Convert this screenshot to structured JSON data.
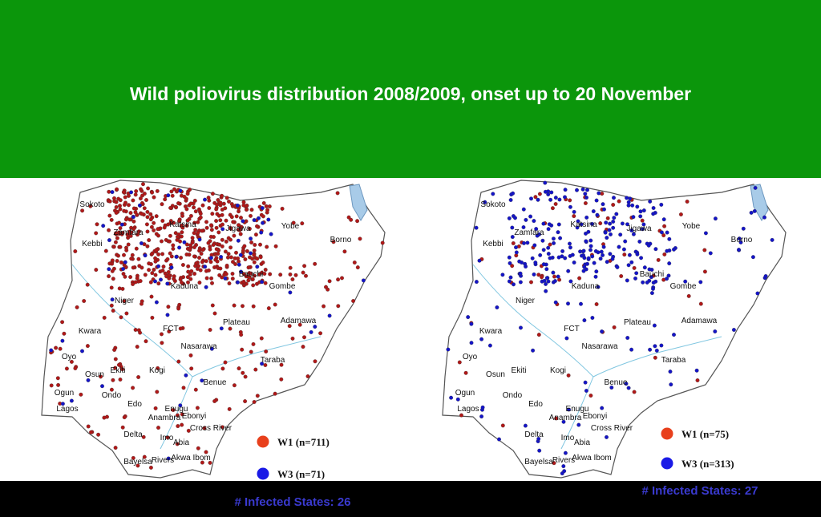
{
  "header": {
    "title": "Wild poliovirus distribution 2008/2009, onset up to 20 November"
  },
  "maps": [
    {
      "states": [
        "Sokoto",
        "Katsina",
        "Zamfara",
        "Jigawa",
        "Yobe",
        "Kebbi",
        "Borno",
        "Kaduna",
        "Bauchi",
        "Gombe",
        "Niger",
        "Plateau",
        "Adamawa",
        "Kwara",
        "FCT",
        "Nasarawa",
        "Oyo",
        "Osun",
        "Ekiti",
        "Kogi",
        "Taraba",
        "Ogun",
        "Benue",
        "Ondo",
        "Edo",
        "Lagos",
        "Enugu",
        "Anambra",
        "Ebonyi",
        "Cross River",
        "Delta",
        "Imo",
        "Abia",
        "Bayelsa",
        "Rivers",
        "Akwa Ibom"
      ],
      "legend": [
        "W1 (n=711)",
        "W3 (n=71)"
      ],
      "infected": "# Infected States: 26"
    },
    {
      "states": [
        "Sokoto",
        "Katsina",
        "Zamfara",
        "Jigawa",
        "Yobe",
        "Kebbi",
        "Borno",
        "Kaduna",
        "Bauchi",
        "Gombe",
        "Niger",
        "Plateau",
        "Adamawa",
        "Kwara",
        "FCT",
        "Nasarawa",
        "Oyo",
        "Osun",
        "Ekiti",
        "Kogi",
        "Taraba",
        "Ogun",
        "Benue",
        "Ondo",
        "Edo",
        "Lagos",
        "Enugu",
        "Anambra",
        "Ebonyi",
        "Cross River",
        "Delta",
        "Imo",
        "Abia",
        "Bayelsa",
        "Rivers",
        "Akwa Ibom"
      ],
      "legend": [
        "W1 (n=75)",
        "W3 (n=313)"
      ],
      "infected": "# Infected States: 27"
    }
  ]
}
